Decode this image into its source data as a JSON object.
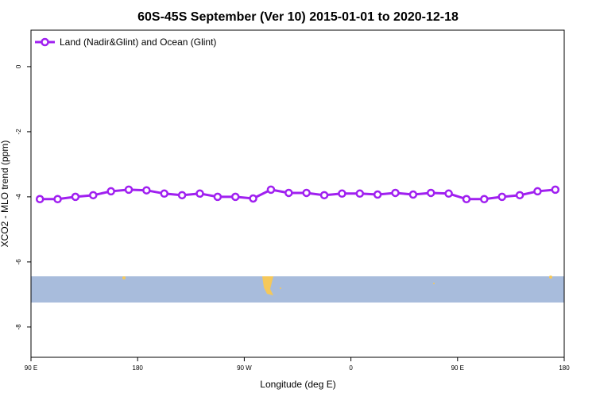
{
  "chart_data": {
    "type": "line",
    "title": "60S-45S September (Ver 10)   2015-01-01 to 2020-12-18",
    "x_label": "Longitude (deg E)",
    "y_label": "XCO2 - MLO trend (ppm)",
    "x": [
      97.5,
      112.5,
      127.5,
      142.5,
      157.5,
      172.5,
      187.5,
      202.5,
      217.5,
      232.5,
      247.5,
      262.5,
      277.5,
      292.5,
      307.5,
      322.5,
      337.5,
      352.5,
      367.5,
      382.5,
      397.5,
      412.5,
      427.5,
      442.5,
      457.5,
      472.5,
      487.5,
      502.5,
      517.5,
      532.5
    ],
    "series": [
      {
        "name": "Land (Nadir&Glint) and Ocean (Glint)",
        "color": "#a020f0",
        "values": [
          -4.07,
          -4.07,
          -4.0,
          -3.95,
          -3.83,
          -3.78,
          -3.8,
          -3.9,
          -3.95,
          -3.9,
          -4.0,
          -4.0,
          -4.05,
          -3.78,
          -3.88,
          -3.88,
          -3.95,
          -3.9,
          -3.9,
          -3.93,
          -3.88,
          -3.93,
          -3.88,
          -3.9,
          -4.07,
          -4.07,
          -4.0,
          -3.95,
          -3.83,
          -3.78
        ]
      }
    ],
    "xlim": [
      90,
      540
    ],
    "xticks": [
      {
        "value": 90,
        "label": "90 E"
      },
      {
        "value": 180,
        "label": "180"
      },
      {
        "value": 270,
        "label": "90 W"
      },
      {
        "value": 360,
        "label": "0"
      },
      {
        "value": 450,
        "label": "90 E"
      },
      {
        "value": 540,
        "label": "180"
      }
    ],
    "ylim": [
      -8.93,
      1.12
    ],
    "yticks": [
      0,
      -2,
      -4,
      -6,
      -8
    ],
    "legend": "top-left"
  }
}
